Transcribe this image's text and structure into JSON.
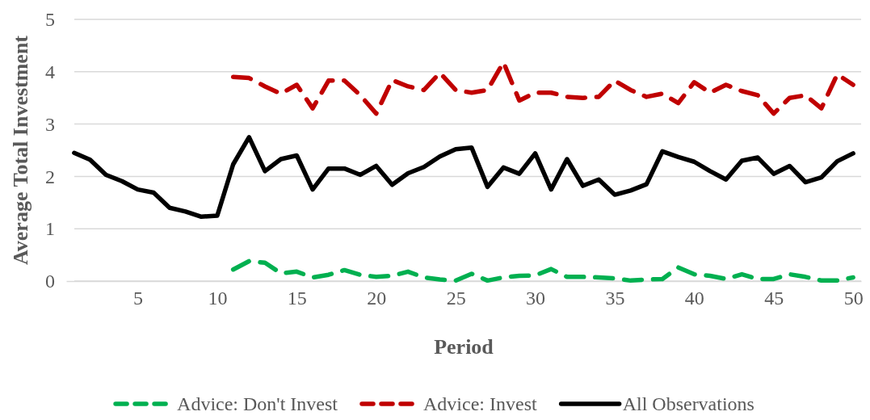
{
  "chart_data": {
    "type": "line",
    "xlabel": "Period",
    "ylabel": "Average Total Investment",
    "x": [
      1,
      2,
      3,
      4,
      5,
      6,
      7,
      8,
      9,
      10,
      11,
      12,
      13,
      14,
      15,
      16,
      17,
      18,
      19,
      20,
      21,
      22,
      23,
      24,
      25,
      26,
      27,
      28,
      29,
      30,
      31,
      32,
      33,
      34,
      35,
      36,
      37,
      38,
      39,
      40,
      41,
      42,
      43,
      44,
      45,
      46,
      47,
      48,
      49,
      50
    ],
    "xlim": [
      0.5,
      50.5
    ],
    "xticks": [
      5,
      10,
      15,
      20,
      25,
      30,
      35,
      40,
      45,
      50
    ],
    "ylim": [
      0,
      5
    ],
    "yticks": [
      0,
      1,
      2,
      3,
      4,
      5
    ],
    "grid": "y",
    "legend": "bottom",
    "marker": "none",
    "series": [
      {
        "name": "Advice: Don't Invest",
        "color": "#00b050",
        "line_style": "dashed",
        "x": [
          11,
          12,
          13,
          14,
          15,
          16,
          17,
          18,
          19,
          20,
          21,
          22,
          23,
          24,
          25,
          26,
          27,
          28,
          29,
          30,
          31,
          32,
          33,
          34,
          35,
          36,
          37,
          38,
          39,
          40,
          41,
          42,
          43,
          44,
          45,
          46,
          47,
          48,
          49,
          50
        ],
        "values": [
          0.22,
          0.38,
          0.35,
          0.15,
          0.18,
          0.07,
          0.12,
          0.21,
          0.12,
          0.08,
          0.1,
          0.18,
          0.07,
          0.03,
          0.01,
          0.14,
          0.01,
          0.07,
          0.1,
          0.11,
          0.23,
          0.08,
          0.08,
          0.07,
          0.05,
          0.01,
          0.03,
          0.04,
          0.26,
          0.13,
          0.1,
          0.04,
          0.13,
          0.04,
          0.04,
          0.13,
          0.08,
          0.01,
          0.01,
          0.07
        ]
      },
      {
        "name": "Advice: Invest",
        "color": "#c00000",
        "line_style": "dashed",
        "x": [
          11,
          12,
          13,
          14,
          15,
          16,
          17,
          18,
          19,
          20,
          21,
          22,
          23,
          24,
          25,
          26,
          27,
          28,
          29,
          30,
          31,
          32,
          33,
          34,
          35,
          36,
          37,
          38,
          39,
          40,
          41,
          42,
          43,
          44,
          45,
          46,
          47,
          48,
          49,
          50
        ],
        "values": [
          3.9,
          3.88,
          3.72,
          3.58,
          3.75,
          3.3,
          3.83,
          3.83,
          3.55,
          3.2,
          3.84,
          3.72,
          3.65,
          3.98,
          3.65,
          3.6,
          3.65,
          4.18,
          3.45,
          3.6,
          3.6,
          3.52,
          3.5,
          3.52,
          3.83,
          3.65,
          3.52,
          3.58,
          3.4,
          3.8,
          3.6,
          3.75,
          3.63,
          3.55,
          3.2,
          3.5,
          3.55,
          3.3,
          3.95,
          3.75
        ]
      },
      {
        "name": "All Observations",
        "color": "#000000",
        "line_style": "solid",
        "values": [
          2.45,
          2.32,
          2.03,
          1.91,
          1.75,
          1.69,
          1.4,
          1.33,
          1.23,
          1.25,
          2.23,
          2.75,
          2.1,
          2.33,
          2.4,
          1.75,
          2.15,
          2.15,
          2.03,
          2.2,
          1.84,
          2.06,
          2.18,
          2.38,
          2.52,
          2.55,
          1.8,
          2.17,
          2.05,
          2.44,
          1.75,
          2.33,
          1.82,
          1.94,
          1.65,
          1.73,
          1.85,
          2.48,
          2.37,
          2.28,
          2.1,
          1.94,
          2.3,
          2.36,
          2.05,
          2.2,
          1.89,
          1.98,
          2.29,
          2.44
        ]
      }
    ]
  }
}
